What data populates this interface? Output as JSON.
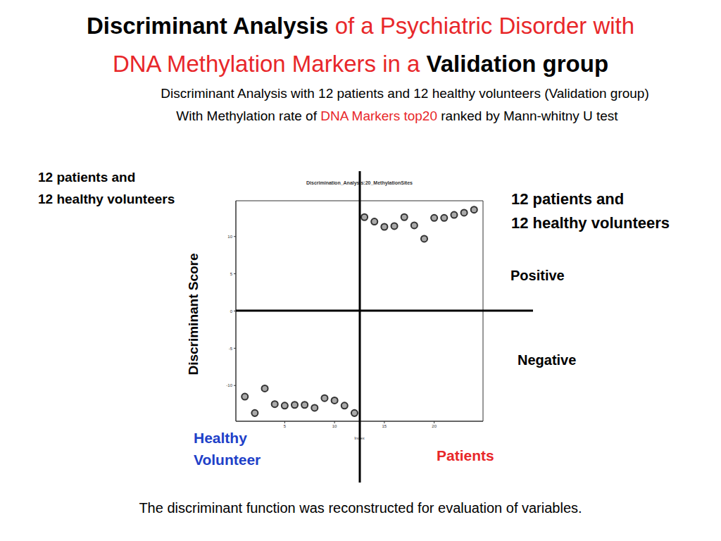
{
  "slide": {
    "title_parts": [
      "Discriminant Analysis",
      "of  a Psychiatric Disorder with",
      "DNA Methylation Markers in a",
      "Validation group"
    ],
    "subtitle_line1": "Discriminant Analysis with 12 patients and 12 healthy volunteers (Validation group)",
    "subtitle_line2_parts": [
      "With Methylation rate of ",
      "DNA Markers top20",
      " ranked by Mann-whitny U test"
    ],
    "left_label": [
      "12 patients and",
      "12 healthy volunteers"
    ],
    "right_label": [
      "12 patients and",
      "12 healthy volunteers"
    ],
    "positive": "Positive",
    "negative": "Negative",
    "y_annotation": "Discriminant Score",
    "healthy_label": [
      "Healthy",
      "Volunteer"
    ],
    "patients_label": "Patients",
    "footer": "The discriminant function was reconstructed for evaluation of variables."
  },
  "chart_data": {
    "type": "scatter",
    "title": "Discrimination_Analysis:20_MethylationSites",
    "x_label": "Index",
    "x": [
      1,
      2,
      3,
      4,
      5,
      6,
      7,
      8,
      9,
      10,
      11,
      12,
      13,
      14,
      15,
      16,
      17,
      18,
      19,
      20,
      21,
      22,
      23,
      24
    ],
    "values": [
      -11.5,
      -13.7,
      -10.4,
      -12.5,
      -12.7,
      -12.6,
      -12.6,
      -13.0,
      -11.7,
      -12.0,
      -12.7,
      -13.7,
      12.6,
      12.0,
      11.3,
      11.4,
      12.6,
      11.5,
      9.7,
      12.5,
      12.5,
      12.9,
      13.2,
      13.6
    ],
    "xlim": [
      0.1,
      24.9
    ],
    "ylim": [
      -14.8,
      14.8
    ],
    "xticks": [
      5,
      10,
      15,
      20
    ],
    "yticks": [
      -10,
      -5,
      0,
      5,
      10
    ],
    "color": "#333333",
    "marker": "circle"
  }
}
